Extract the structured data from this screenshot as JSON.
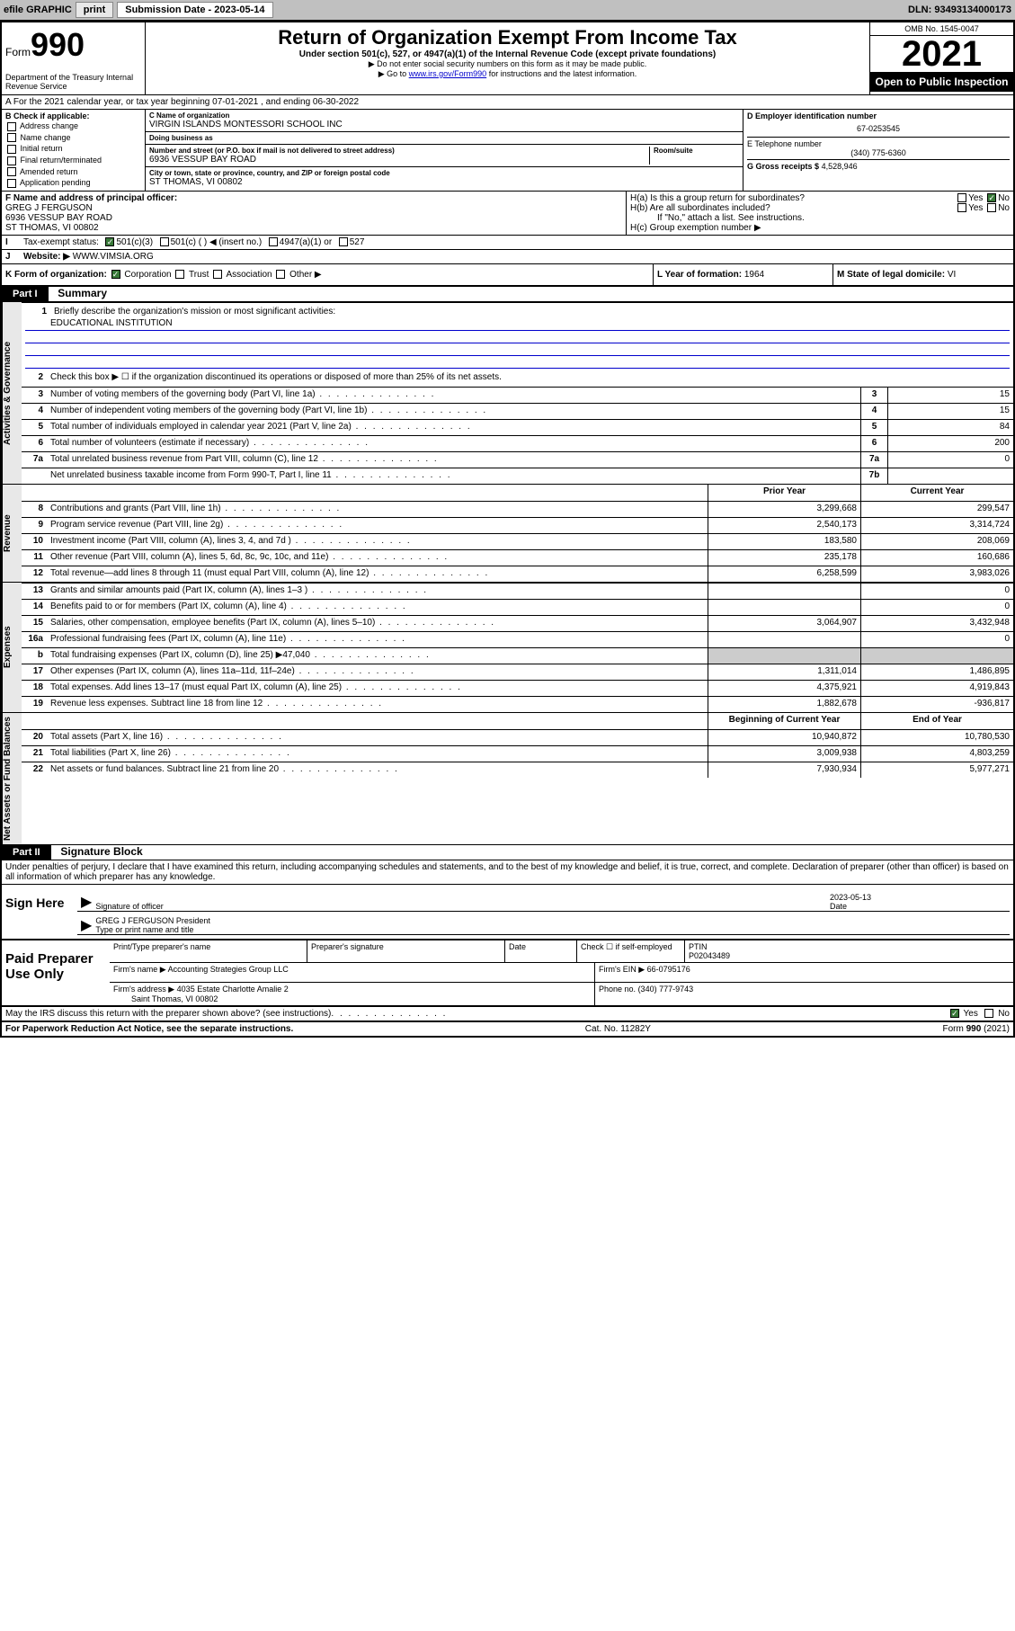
{
  "topbar": {
    "efile_label": "efile GRAPHIC",
    "print_btn": "print",
    "submission_label": "Submission Date - 2023-05-14",
    "dln": "DLN: 93493134000173"
  },
  "header": {
    "form_prefix": "Form",
    "form_num": "990",
    "dept": "Department of the Treasury\nInternal Revenue Service",
    "title": "Return of Organization Exempt From Income Tax",
    "sub": "Under section 501(c), 527, or 4947(a)(1) of the Internal Revenue Code (except private foundations)",
    "line1": "▶ Do not enter social security numbers on this form as it may be made public.",
    "line2_pre": "▶ Go to ",
    "line2_link": "www.irs.gov/Form990",
    "line2_post": " for instructions and the latest information.",
    "omb": "OMB No. 1545-0047",
    "year": "2021",
    "open": "Open to Public Inspection"
  },
  "row_a": {
    "text": "A For the 2021 calendar year, or tax year beginning 07-01-2021 , and ending 06-30-2022"
  },
  "col_b": {
    "title": "B Check if applicable:",
    "opts": [
      "Address change",
      "Name change",
      "Initial return",
      "Final return/terminated",
      "Amended return",
      "Application pending"
    ]
  },
  "col_c": {
    "name_label": "C Name of organization",
    "name": "VIRGIN ISLANDS MONTESSORI SCHOOL INC",
    "dba_label": "Doing business as",
    "dba": "",
    "addr_label": "Number and street (or P.O. box if mail is not delivered to street address)",
    "room_label": "Room/suite",
    "addr": "6936 VESSUP BAY ROAD",
    "city_label": "City or town, state or province, country, and ZIP or foreign postal code",
    "city": "ST THOMAS, VI  00802"
  },
  "col_d": {
    "ein_label": "D Employer identification number",
    "ein": "67-0253545",
    "phone_label": "E Telephone number",
    "phone": "(340) 775-6360",
    "gross_label": "G Gross receipts $",
    "gross": "4,528,946"
  },
  "col_f": {
    "label": "F Name and address of principal officer:",
    "name": "GREG J FERGUSON",
    "addr1": "6936 VESSUP BAY ROAD",
    "addr2": "ST THOMAS, VI  00802"
  },
  "col_h": {
    "ha": "H(a) Is this a group return for subordinates?",
    "ha_yes": "Yes",
    "ha_no": "No",
    "hb": "H(b) Are all subordinates included?",
    "hb_yes": "Yes",
    "hb_no": "No",
    "hb_note": "If \"No,\" attach a list. See instructions.",
    "hc": "H(c) Group exemption number ▶"
  },
  "row_i": {
    "label": "Tax-exempt status:",
    "opt1": "501(c)(3)",
    "opt2": "501(c) (   ) ◀ (insert no.)",
    "opt3": "4947(a)(1) or",
    "opt4": "527"
  },
  "row_j": {
    "label": "Website: ▶",
    "val": "WWW.VIMSIA.ORG"
  },
  "row_k": {
    "label": "K Form of organization:",
    "opts": [
      "Corporation",
      "Trust",
      "Association",
      "Other ▶"
    ],
    "l_label": "L Year of formation:",
    "l_val": "1964",
    "m_label": "M State of legal domicile:",
    "m_val": "VI"
  },
  "part1_label": "Part I",
  "part1_title": "Summary",
  "summary": {
    "q1_label": "Briefly describe the organization's mission or most significant activities:",
    "q1_val": "EDUCATIONAL INSTITUTION",
    "q2": "Check this box ▶ ☐ if the organization discontinued its operations or disposed of more than 25% of its net assets.",
    "lines": [
      {
        "n": "3",
        "t": "Number of voting members of the governing body (Part VI, line 1a)",
        "c": "3",
        "v": "15"
      },
      {
        "n": "4",
        "t": "Number of independent voting members of the governing body (Part VI, line 1b)",
        "c": "4",
        "v": "15"
      },
      {
        "n": "5",
        "t": "Total number of individuals employed in calendar year 2021 (Part V, line 2a)",
        "c": "5",
        "v": "84"
      },
      {
        "n": "6",
        "t": "Total number of volunteers (estimate if necessary)",
        "c": "6",
        "v": "200"
      },
      {
        "n": "7a",
        "t": "Total unrelated business revenue from Part VIII, column (C), line 12",
        "c": "7a",
        "v": "0"
      },
      {
        "n": "",
        "t": "Net unrelated business taxable income from Form 990-T, Part I, line 11",
        "c": "7b",
        "v": ""
      }
    ],
    "hdr_prior": "Prior Year",
    "hdr_current": "Current Year",
    "revenue": [
      {
        "n": "8",
        "t": "Contributions and grants (Part VIII, line 1h)",
        "p": "3,299,668",
        "c": "299,547"
      },
      {
        "n": "9",
        "t": "Program service revenue (Part VIII, line 2g)",
        "p": "2,540,173",
        "c": "3,314,724"
      },
      {
        "n": "10",
        "t": "Investment income (Part VIII, column (A), lines 3, 4, and 7d )",
        "p": "183,580",
        "c": "208,069"
      },
      {
        "n": "11",
        "t": "Other revenue (Part VIII, column (A), lines 5, 6d, 8c, 9c, 10c, and 11e)",
        "p": "235,178",
        "c": "160,686"
      },
      {
        "n": "12",
        "t": "Total revenue—add lines 8 through 11 (must equal Part VIII, column (A), line 12)",
        "p": "6,258,599",
        "c": "3,983,026"
      }
    ],
    "expenses": [
      {
        "n": "13",
        "t": "Grants and similar amounts paid (Part IX, column (A), lines 1–3 )",
        "p": "",
        "c": "0"
      },
      {
        "n": "14",
        "t": "Benefits paid to or for members (Part IX, column (A), line 4)",
        "p": "",
        "c": "0"
      },
      {
        "n": "15",
        "t": "Salaries, other compensation, employee benefits (Part IX, column (A), lines 5–10)",
        "p": "3,064,907",
        "c": "3,432,948"
      },
      {
        "n": "16a",
        "t": "Professional fundraising fees (Part IX, column (A), line 11e)",
        "p": "",
        "c": "0"
      },
      {
        "n": "b",
        "t": "Total fundraising expenses (Part IX, column (D), line 25) ▶47,040",
        "p": "grey",
        "c": "grey"
      },
      {
        "n": "17",
        "t": "Other expenses (Part IX, column (A), lines 11a–11d, 11f–24e)",
        "p": "1,311,014",
        "c": "1,486,895"
      },
      {
        "n": "18",
        "t": "Total expenses. Add lines 13–17 (must equal Part IX, column (A), line 25)",
        "p": "4,375,921",
        "c": "4,919,843"
      },
      {
        "n": "19",
        "t": "Revenue less expenses. Subtract line 18 from line 12",
        "p": "1,882,678",
        "c": "-936,817"
      }
    ],
    "hdr_begin": "Beginning of Current Year",
    "hdr_end": "End of Year",
    "netassets": [
      {
        "n": "20",
        "t": "Total assets (Part X, line 16)",
        "p": "10,940,872",
        "c": "10,780,530"
      },
      {
        "n": "21",
        "t": "Total liabilities (Part X, line 26)",
        "p": "3,009,938",
        "c": "4,803,259"
      },
      {
        "n": "22",
        "t": "Net assets or fund balances. Subtract line 21 from line 20",
        "p": "7,930,934",
        "c": "5,977,271"
      }
    ]
  },
  "vtabs": {
    "gov": "Activities & Governance",
    "rev": "Revenue",
    "exp": "Expenses",
    "net": "Net Assets or Fund Balances"
  },
  "part2_label": "Part II",
  "part2_title": "Signature Block",
  "sig": {
    "intro": "Under penalties of perjury, I declare that I have examined this return, including accompanying schedules and statements, and to the best of my knowledge and belief, it is true, correct, and complete. Declaration of preparer (other than officer) is based on all information of which preparer has any knowledge.",
    "here": "Sign Here",
    "officer_sig": "Signature of officer",
    "date_label": "Date",
    "date_val": "2023-05-13",
    "officer_name": "GREG J FERGUSON  President",
    "officer_sub": "Type or print name and title"
  },
  "prep": {
    "title": "Paid Preparer Use Only",
    "name_label": "Print/Type preparer's name",
    "sig_label": "Preparer's signature",
    "check_label": "Check ☐ if self-employed",
    "ptin_label": "PTIN",
    "ptin": "P02043489",
    "firm_name_label": "Firm's name ▶",
    "firm_name": "Accounting Strategies Group LLC",
    "firm_ein_label": "Firm's EIN ▶",
    "firm_ein": "66-0795176",
    "firm_addr_label": "Firm's address ▶",
    "firm_addr1": "4035 Estate Charlotte Amalie 2",
    "firm_addr2": "Saint Thomas, VI  00802",
    "phone_label": "Phone no.",
    "phone": "(340) 777-9743"
  },
  "footer": {
    "discuss": "May the IRS discuss this return with the preparer shown above? (see instructions)",
    "yes": "Yes",
    "no": "No",
    "pra": "For Paperwork Reduction Act Notice, see the separate instructions.",
    "cat": "Cat. No. 11282Y",
    "form": "Form 990 (2021)"
  }
}
